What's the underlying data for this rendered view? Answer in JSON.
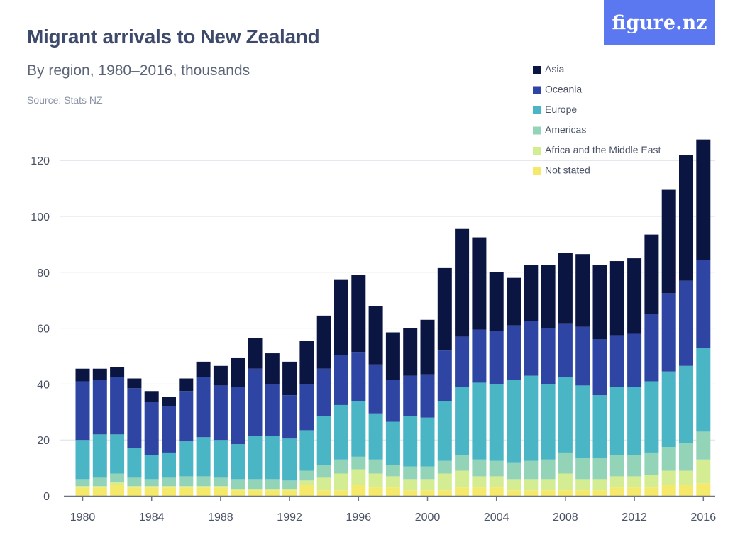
{
  "header": {
    "title": "Migrant arrivals to New Zealand",
    "subtitle": "By region, 1980–2016, thousands",
    "source": "Source: Stats NZ",
    "logo": "figure.nz",
    "logo_color": "#5b78f0"
  },
  "chart_data": {
    "type": "bar",
    "stacked": true,
    "title": "Migrant arrivals to New Zealand",
    "subtitle": "By region, 1980–2016, thousands",
    "xlabel": "",
    "ylabel": "",
    "ylim": [
      0,
      130
    ],
    "y_ticks": [
      0,
      20,
      40,
      60,
      80,
      100,
      120
    ],
    "x_tick_labels": [
      "1980",
      "1984",
      "1988",
      "1992",
      "1996",
      "2000",
      "2004",
      "2008",
      "2012",
      "2016"
    ],
    "categories": [
      "1980",
      "1981",
      "1982",
      "1983",
      "1984",
      "1985",
      "1986",
      "1987",
      "1988",
      "1989",
      "1990",
      "1991",
      "1992",
      "1993",
      "1994",
      "1995",
      "1996",
      "1997",
      "1998",
      "1999",
      "2000",
      "2001",
      "2002",
      "2003",
      "2004",
      "2005",
      "2006",
      "2007",
      "2008",
      "2009",
      "2010",
      "2011",
      "2012",
      "2013",
      "2014",
      "2015",
      "2016"
    ],
    "legend_position": "top-right",
    "grid": true,
    "series": [
      {
        "name": "Not stated",
        "color": "#f4e96b",
        "values": [
          3,
          3,
          4,
          3,
          3,
          3,
          3,
          3,
          3,
          2,
          2,
          2,
          2,
          4,
          2,
          2,
          4,
          3,
          3,
          2,
          2,
          2,
          3,
          3,
          3,
          2,
          2,
          2,
          2,
          2,
          2,
          3,
          3,
          3,
          4,
          4,
          4.5
        ]
      },
      {
        "name": "Africa and the Middle East",
        "color": "#d4ec92",
        "values": [
          0.5,
          0.5,
          1,
          0.5,
          0.5,
          0.5,
          0.5,
          0.5,
          0.5,
          0.5,
          0.5,
          0.5,
          0.5,
          1.5,
          4.5,
          6,
          5.5,
          5,
          4,
          4,
          4,
          6,
          6,
          4,
          4,
          4,
          4,
          4,
          6,
          4,
          4,
          4,
          4,
          4.5,
          5,
          5,
          8.5
        ]
      },
      {
        "name": "Americas",
        "color": "#93d4b8",
        "values": [
          2.5,
          3,
          3,
          3,
          2.5,
          3,
          3.5,
          3.5,
          3,
          3.5,
          3.5,
          3.5,
          3,
          3.5,
          4.5,
          5,
          4.5,
          5,
          4,
          4.5,
          4.5,
          4.5,
          5.5,
          6,
          5.5,
          6,
          6.5,
          7,
          7.5,
          7.5,
          7.5,
          7.5,
          7.5,
          8,
          8.5,
          10,
          10
        ]
      },
      {
        "name": "Europe",
        "color": "#4ab5c4",
        "values": [
          14,
          15.5,
          14,
          10.5,
          8.5,
          9,
          12.5,
          14,
          13.5,
          12.5,
          15.5,
          15.5,
          15,
          14.5,
          17.5,
          19.5,
          20,
          16.5,
          15.5,
          18,
          17.5,
          21.5,
          24.5,
          27.5,
          27.5,
          29.5,
          30.5,
          27,
          27,
          26,
          22.5,
          24.5,
          24.5,
          25.5,
          27,
          27.5,
          30
        ]
      },
      {
        "name": "Oceania",
        "color": "#2e45a4",
        "values": [
          21,
          19.5,
          20.5,
          21.5,
          19,
          16.5,
          18,
          21.5,
          19.5,
          20.5,
          24,
          18.5,
          15.5,
          16.5,
          17,
          18,
          17.5,
          17.5,
          15,
          14.5,
          15.5,
          18,
          18,
          19,
          19,
          19.5,
          19.5,
          20,
          19,
          21,
          20,
          18.5,
          19,
          24,
          28,
          30.5,
          31.5
        ]
      },
      {
        "name": "Asia",
        "color": "#0b1542",
        "values": [
          4.5,
          4,
          3.5,
          3.5,
          4,
          3.5,
          4.5,
          5.5,
          7,
          10.5,
          11,
          11,
          12,
          15.5,
          19,
          27,
          27.5,
          21,
          17,
          17,
          19.5,
          29.5,
          38.5,
          33,
          21,
          17,
          20,
          22.5,
          25.5,
          26,
          26.5,
          26.5,
          27,
          28.5,
          37,
          45,
          43
        ]
      }
    ]
  }
}
